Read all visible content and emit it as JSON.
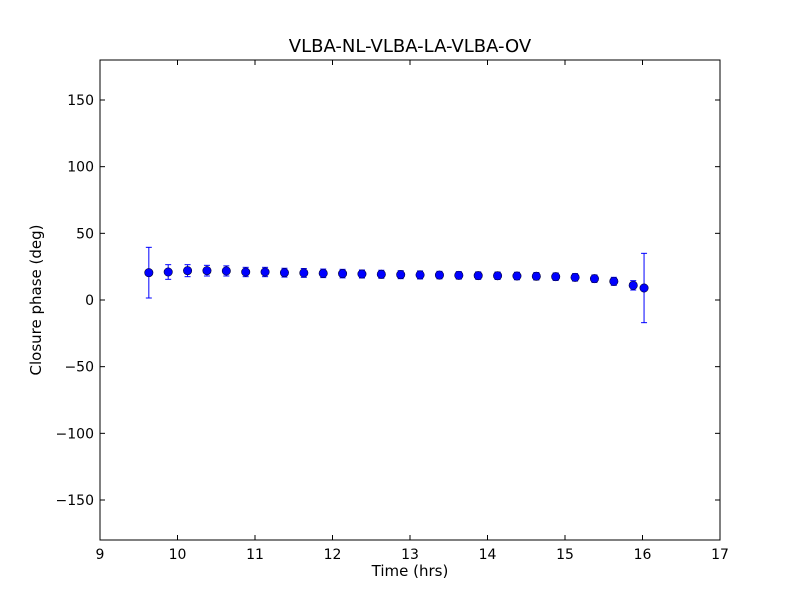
{
  "chart_data": {
    "type": "scatter",
    "title": "VLBA-NL-VLBA-LA-VLBA-OV",
    "xlabel": "Time (hrs)",
    "ylabel": "Closure phase (deg)",
    "xlim": [
      9,
      17
    ],
    "ylim": [
      -180,
      180
    ],
    "xticks": [
      9,
      10,
      11,
      12,
      13,
      14,
      15,
      16,
      17
    ],
    "xtick_labels": [
      "9",
      "10",
      "11",
      "12",
      "13",
      "14",
      "15",
      "16",
      "17"
    ],
    "yticks": [
      -150,
      -100,
      -50,
      0,
      50,
      100,
      150
    ],
    "ytick_labels": [
      "−150",
      "−100",
      "−50",
      "0",
      "50",
      "100",
      "150"
    ],
    "grid": false,
    "error_bars": true,
    "marker_color": "#0000ff",
    "series": [
      {
        "x": [
          9.63,
          9.88,
          10.13,
          10.38,
          10.63,
          10.88,
          11.13,
          11.38,
          11.63,
          11.88,
          12.13,
          12.38,
          12.63,
          12.88,
          13.13,
          13.38,
          13.63,
          13.88,
          14.13,
          14.38,
          14.63,
          14.88,
          15.13,
          15.38,
          15.63,
          15.88,
          16.02
        ],
        "y": [
          20.5,
          21.0,
          22.0,
          22.0,
          21.8,
          21.0,
          21.0,
          20.5,
          20.3,
          20.0,
          19.8,
          19.5,
          19.3,
          19.0,
          18.8,
          18.7,
          18.5,
          18.3,
          18.2,
          18.0,
          17.8,
          17.5,
          17.0,
          16.0,
          14.0,
          11.0,
          9.0
        ],
        "yerr": [
          19.0,
          5.5,
          4.5,
          4.0,
          3.8,
          3.5,
          3.5,
          3.3,
          3.3,
          3.2,
          3.2,
          3.0,
          3.0,
          3.0,
          3.0,
          2.8,
          2.8,
          2.8,
          2.8,
          2.8,
          2.8,
          2.8,
          2.8,
          2.8,
          3.0,
          3.5,
          26.0
        ]
      }
    ]
  }
}
